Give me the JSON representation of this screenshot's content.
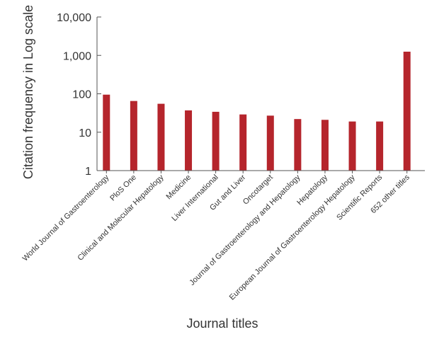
{
  "chart_data": {
    "type": "bar",
    "title": "",
    "xlabel": "Journal titles",
    "ylabel": "Citation frequency in Log scale",
    "y_scale": "log",
    "ylim": [
      1,
      10000
    ],
    "y_ticks": [
      1,
      10,
      100,
      1000,
      10000
    ],
    "y_tick_labels": [
      "1",
      "10",
      "100",
      "1,000",
      "10,000"
    ],
    "grid": false,
    "bar_color": "#b5252c",
    "categories": [
      "World Journal of Gastroenterology",
      "PloS One",
      "Clinical and Molecular Hepatology",
      "Medicine",
      "Liver International",
      "Gut and Liver",
      "Oncotarget",
      "Journal of Gastroenterology and Hepatology",
      "Hepatology",
      "European Journal of Gastroenterology Hepatology",
      "Scientific Reports",
      "652 other titles"
    ],
    "values": [
      95,
      65,
      55,
      37,
      34,
      29,
      27,
      22,
      21,
      19,
      19,
      1250
    ]
  }
}
